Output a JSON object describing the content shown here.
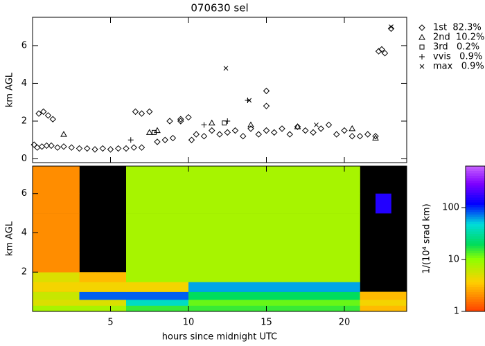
{
  "chart_data": [
    {
      "type": "scatter",
      "title": "070630 sel",
      "ylabel": "km AGL",
      "xlim": [
        0,
        24
      ],
      "ylim": [
        -0.2,
        7.5
      ],
      "yticks": [
        0,
        2,
        4,
        6
      ],
      "series": [
        {
          "name": "1st  82.3%",
          "marker": "diamond",
          "color": "#000000",
          "x": [
            0.1,
            0.4,
            0.7,
            1.0,
            1.3,
            0.3,
            0.6,
            0.9,
            1.2,
            1.6,
            2.0,
            2.5,
            3.0,
            3.5,
            4.0,
            4.5,
            5.0,
            5.5,
            6.0,
            6.5,
            7.0,
            6.6,
            7.0,
            7.5,
            8.0,
            8.5,
            9.0,
            9.5,
            10.0,
            8.8,
            9.5,
            10.2,
            10.5,
            11.0,
            11.5,
            12.0,
            12.5,
            13.0,
            13.5,
            14.0,
            14.5,
            15.0,
            15.0,
            15.0,
            15.5,
            16.0,
            16.5,
            17.0,
            17.5,
            18.0,
            18.5,
            19.0,
            19.5,
            20.0,
            20.5,
            21.0,
            21.5,
            22.0,
            22.2,
            22.4,
            22.6,
            23.0
          ],
          "values": [
            0.75,
            2.4,
            2.5,
            2.3,
            2.1,
            0.6,
            0.65,
            0.7,
            0.7,
            0.6,
            0.65,
            0.6,
            0.55,
            0.55,
            0.5,
            0.55,
            0.5,
            0.55,
            0.55,
            0.6,
            0.6,
            2.5,
            2.4,
            2.5,
            0.9,
            1.0,
            1.1,
            2.0,
            2.2,
            2.0,
            2.1,
            1.0,
            1.3,
            1.2,
            1.5,
            1.3,
            1.4,
            1.5,
            1.2,
            1.6,
            1.3,
            2.8,
            3.6,
            1.5,
            1.4,
            1.6,
            1.3,
            1.7,
            1.5,
            1.4,
            1.6,
            1.8,
            1.3,
            1.5,
            1.2,
            1.2,
            1.3,
            1.2,
            5.7,
            5.8,
            5.6,
            6.9
          ]
        },
        {
          "name": "2nd  10.2%",
          "marker": "triangle",
          "color": "#000000",
          "x": [
            2.0,
            7.5,
            8.0,
            11.5,
            14.0,
            17.0,
            20.5,
            22.0
          ],
          "values": [
            1.3,
            1.4,
            1.5,
            1.9,
            1.8,
            1.7,
            1.6,
            1.1
          ]
        },
        {
          "name": "3rd   0.2%",
          "marker": "square",
          "color": "#000000",
          "x": [
            7.8,
            12.3
          ],
          "values": [
            1.4,
            1.9
          ]
        },
        {
          "name": "vvis   0.9%",
          "marker": "plus",
          "color": "#000000",
          "x": [
            6.3,
            11.0,
            12.5,
            13.8
          ],
          "values": [
            1.0,
            1.8,
            2.0,
            3.1
          ]
        },
        {
          "name": "max   0.9%",
          "marker": "cross",
          "color": "#000000",
          "x": [
            12.4,
            13.9,
            18.2,
            23.0
          ],
          "values": [
            4.8,
            3.1,
            1.8,
            7.0
          ]
        }
      ]
    },
    {
      "type": "heatmap",
      "xlabel": "hours since midnight UTC",
      "ylabel": "km AGL",
      "xlim": [
        0,
        24
      ],
      "ylim": [
        0,
        7.4
      ],
      "xticks": [
        5,
        10,
        15,
        20
      ],
      "yticks": [
        2,
        4,
        6
      ],
      "x_edges": [
        0,
        1,
        2,
        3,
        4,
        5,
        6,
        7,
        8,
        9,
        10,
        11,
        12,
        13,
        14,
        15,
        16,
        17,
        18,
        19,
        20,
        21,
        22,
        23,
        24
      ],
      "y_edges": [
        0,
        0.3,
        0.6,
        1,
        1.5,
        2,
        3,
        4,
        5,
        6,
        7.4
      ],
      "z": [
        [
          8,
          8,
          8,
          8,
          8,
          8,
          15,
          15,
          15,
          15,
          15,
          15,
          15,
          15,
          15,
          15,
          15,
          15,
          15,
          15,
          15,
          3,
          3,
          3
        ],
        [
          5,
          5,
          5,
          5,
          5,
          5,
          40,
          40,
          40,
          40,
          12,
          12,
          12,
          12,
          12,
          12,
          12,
          12,
          12,
          12,
          12,
          4,
          4,
          4
        ],
        [
          6,
          6,
          6,
          80,
          80,
          80,
          80,
          80,
          80,
          80,
          20,
          20,
          20,
          20,
          20,
          20,
          20,
          20,
          20,
          20,
          20,
          3,
          3,
          3
        ],
        [
          4,
          4,
          4,
          4,
          4,
          4,
          4,
          4,
          4,
          4,
          60,
          60,
          60,
          60,
          60,
          60,
          60,
          60,
          60,
          60,
          60,
          null,
          null,
          null
        ],
        [
          5,
          5,
          5,
          3,
          3,
          3,
          8,
          8,
          8,
          8,
          8,
          8,
          8,
          8,
          8,
          8,
          8,
          8,
          8,
          8,
          8,
          null,
          null,
          null
        ],
        [
          2,
          2,
          2,
          null,
          null,
          null,
          8,
          8,
          8,
          8,
          8,
          8,
          8,
          8,
          8,
          8,
          8,
          8,
          8,
          8,
          8,
          null,
          null,
          null
        ],
        [
          2,
          2,
          2,
          null,
          null,
          null,
          8,
          8,
          8,
          8,
          8,
          8,
          8,
          8,
          8,
          8,
          8,
          8,
          8,
          8,
          8,
          null,
          null,
          null
        ],
        [
          2,
          2,
          2,
          null,
          null,
          null,
          8,
          8,
          8,
          8,
          8,
          8,
          8,
          8,
          8,
          8,
          8,
          8,
          8,
          8,
          8,
          null,
          null,
          null
        ],
        [
          2,
          2,
          2,
          null,
          null,
          null,
          8,
          8,
          8,
          8,
          8,
          8,
          8,
          8,
          8,
          8,
          8,
          8,
          8,
          8,
          8,
          null,
          150,
          null
        ],
        [
          2,
          2,
          2,
          null,
          null,
          null,
          8,
          8,
          8,
          8,
          8,
          8,
          8,
          8,
          8,
          8,
          8,
          8,
          8,
          8,
          8,
          null,
          null,
          null
        ]
      ],
      "clim": [
        1,
        631
      ],
      "cticks": [
        1,
        10,
        100
      ],
      "log_color": true,
      "colorbar_label": "1/(10⁴ srad km)"
    }
  ]
}
